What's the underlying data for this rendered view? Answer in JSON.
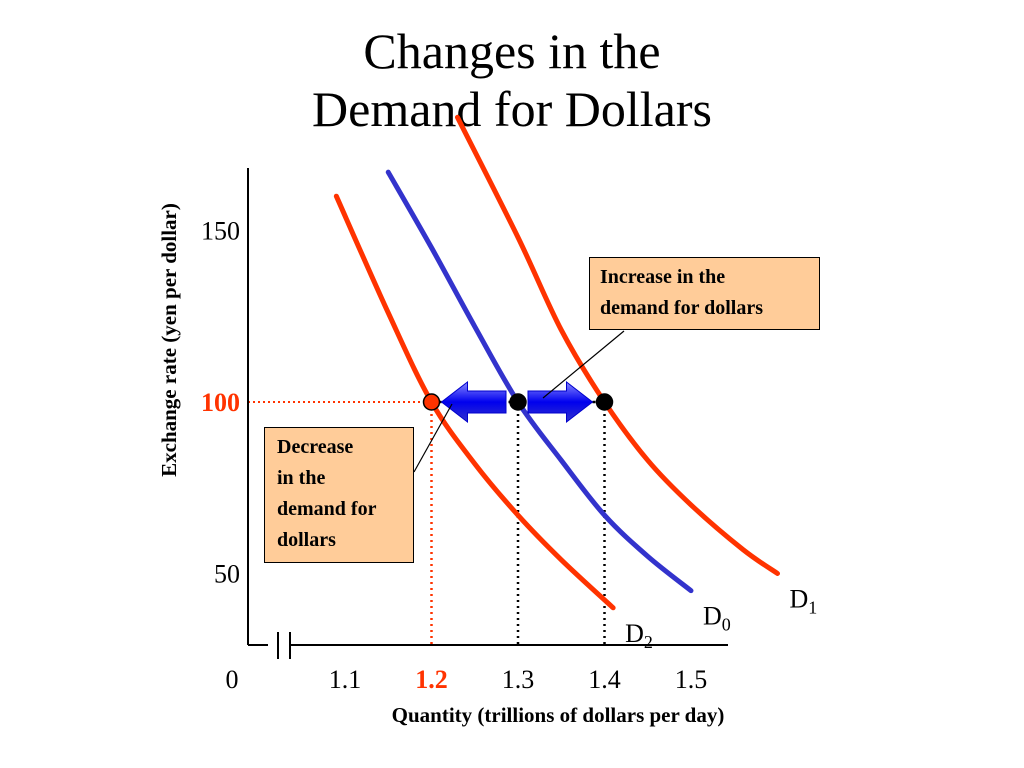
{
  "page": {
    "title_lines": [
      "Changes in the",
      "Demand for Dollars"
    ]
  },
  "chart_data": {
    "type": "line",
    "xlabel": "Quantity (trillions of dollars per day)",
    "ylabel": "Exchange rate (yen per dollar)",
    "x_ticks": [
      {
        "value": 0,
        "label": "0"
      },
      {
        "value": 1.1,
        "label": "1.1"
      },
      {
        "value": 1.2,
        "label": "1.2",
        "highlight": true
      },
      {
        "value": 1.3,
        "label": "1.3"
      },
      {
        "value": 1.4,
        "label": "1.4"
      },
      {
        "value": 1.5,
        "label": "1.5"
      }
    ],
    "y_ticks": [
      {
        "value": 50,
        "label": "50"
      },
      {
        "value": 100,
        "label": "100",
        "highlight": true
      },
      {
        "value": 150,
        "label": "150"
      }
    ],
    "x_axis_break": true,
    "series": [
      {
        "key": "D0",
        "name": "D",
        "sub": "0",
        "color": "#3333CC",
        "points": [
          [
            1.15,
            167
          ],
          [
            1.2,
            145
          ],
          [
            1.25,
            122
          ],
          [
            1.3,
            100
          ],
          [
            1.35,
            83
          ],
          [
            1.4,
            67
          ],
          [
            1.45,
            55
          ],
          [
            1.5,
            45
          ]
        ]
      },
      {
        "key": "D1",
        "name": "D",
        "sub": "1",
        "color": "#FF3300",
        "points": [
          [
            1.23,
            183
          ],
          [
            1.3,
            148
          ],
          [
            1.35,
            121
          ],
          [
            1.4,
            100
          ],
          [
            1.45,
            83
          ],
          [
            1.5,
            70
          ],
          [
            1.56,
            57
          ],
          [
            1.6,
            50
          ]
        ]
      },
      {
        "key": "D2",
        "name": "D",
        "sub": "2",
        "color": "#FF3300",
        "points": [
          [
            1.09,
            160
          ],
          [
            1.15,
            126
          ],
          [
            1.2,
            100
          ],
          [
            1.25,
            82
          ],
          [
            1.3,
            67
          ],
          [
            1.35,
            54
          ],
          [
            1.41,
            40
          ]
        ]
      }
    ],
    "equilibria": [
      {
        "x": 1.2,
        "y": 100,
        "color": "#FF3300"
      },
      {
        "x": 1.3,
        "y": 100,
        "color": "#000000"
      },
      {
        "x": 1.4,
        "y": 100,
        "color": "#000000"
      }
    ],
    "annotations": [
      {
        "key": "increase",
        "lines": [
          "Increase in the",
          "demand for dollars"
        ]
      },
      {
        "key": "decrease",
        "lines": [
          "Decrease",
          "in the",
          "demand for",
          "dollars"
        ]
      }
    ],
    "colors": {
      "axis": "#000000",
      "highlight": "#FF3300",
      "arrow": "#0000FF",
      "callout_bg": "#FFCC99"
    }
  }
}
